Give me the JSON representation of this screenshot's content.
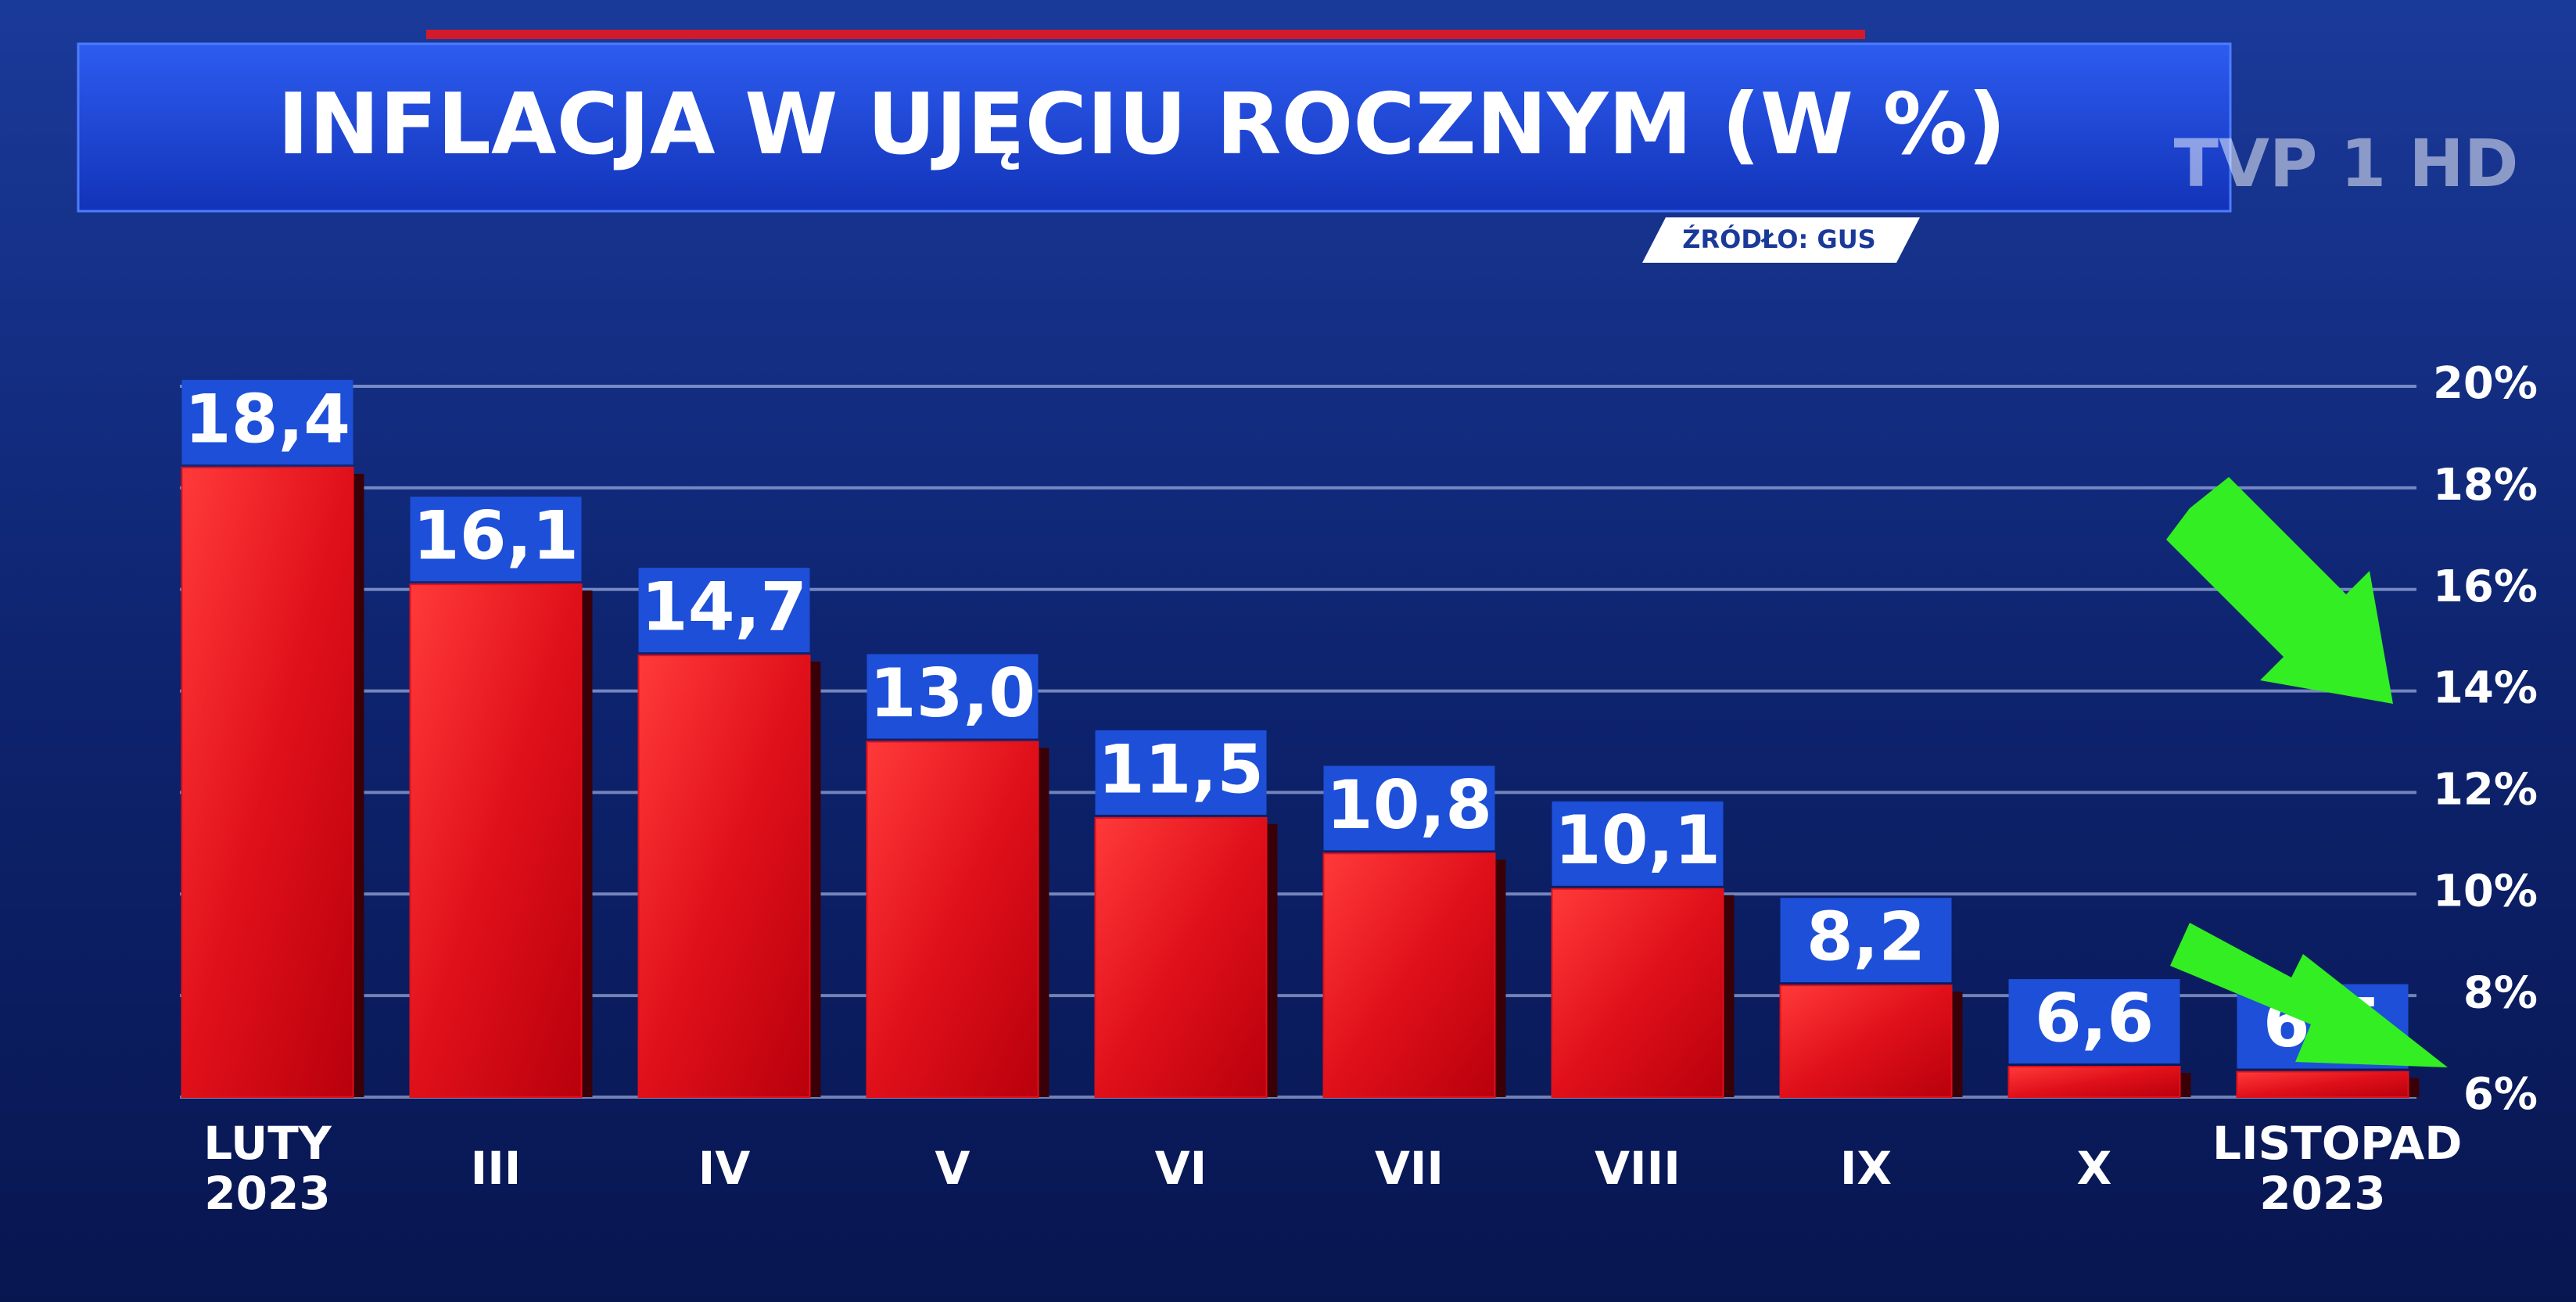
{
  "chart_data": {
    "type": "bar",
    "title": "INFLACJA W UJĘCIU ROCZNYM (W %)",
    "source": "ŹRÓDŁO: GUS",
    "logo": "TVP 1 HD",
    "categories": [
      "LUTY 2023",
      "III",
      "IV",
      "V",
      "VI",
      "VII",
      "VIII",
      "IX",
      "X",
      "LISTOPAD 2023"
    ],
    "values": [
      18.4,
      16.1,
      14.7,
      13.0,
      11.5,
      10.8,
      10.1,
      8.2,
      6.6,
      6.5
    ],
    "value_labels": [
      "18,4",
      "16,1",
      "14,7",
      "13,0",
      "11,5",
      "10,8",
      "10,1",
      "8,2",
      "6,6",
      "6,5"
    ],
    "color": "#e0101a",
    "ylim": [
      6,
      20
    ],
    "yticks": [
      {
        "value": 6,
        "label": "6%"
      },
      {
        "value": 8,
        "label": "8%"
      },
      {
        "value": 10,
        "label": "10%"
      },
      {
        "value": 12,
        "label": "12%"
      },
      {
        "value": 14,
        "label": "14%"
      },
      {
        "value": 16,
        "label": "16%"
      },
      {
        "value": 18,
        "label": "18%"
      },
      {
        "value": 20,
        "label": "20%"
      }
    ],
    "grid": true
  }
}
